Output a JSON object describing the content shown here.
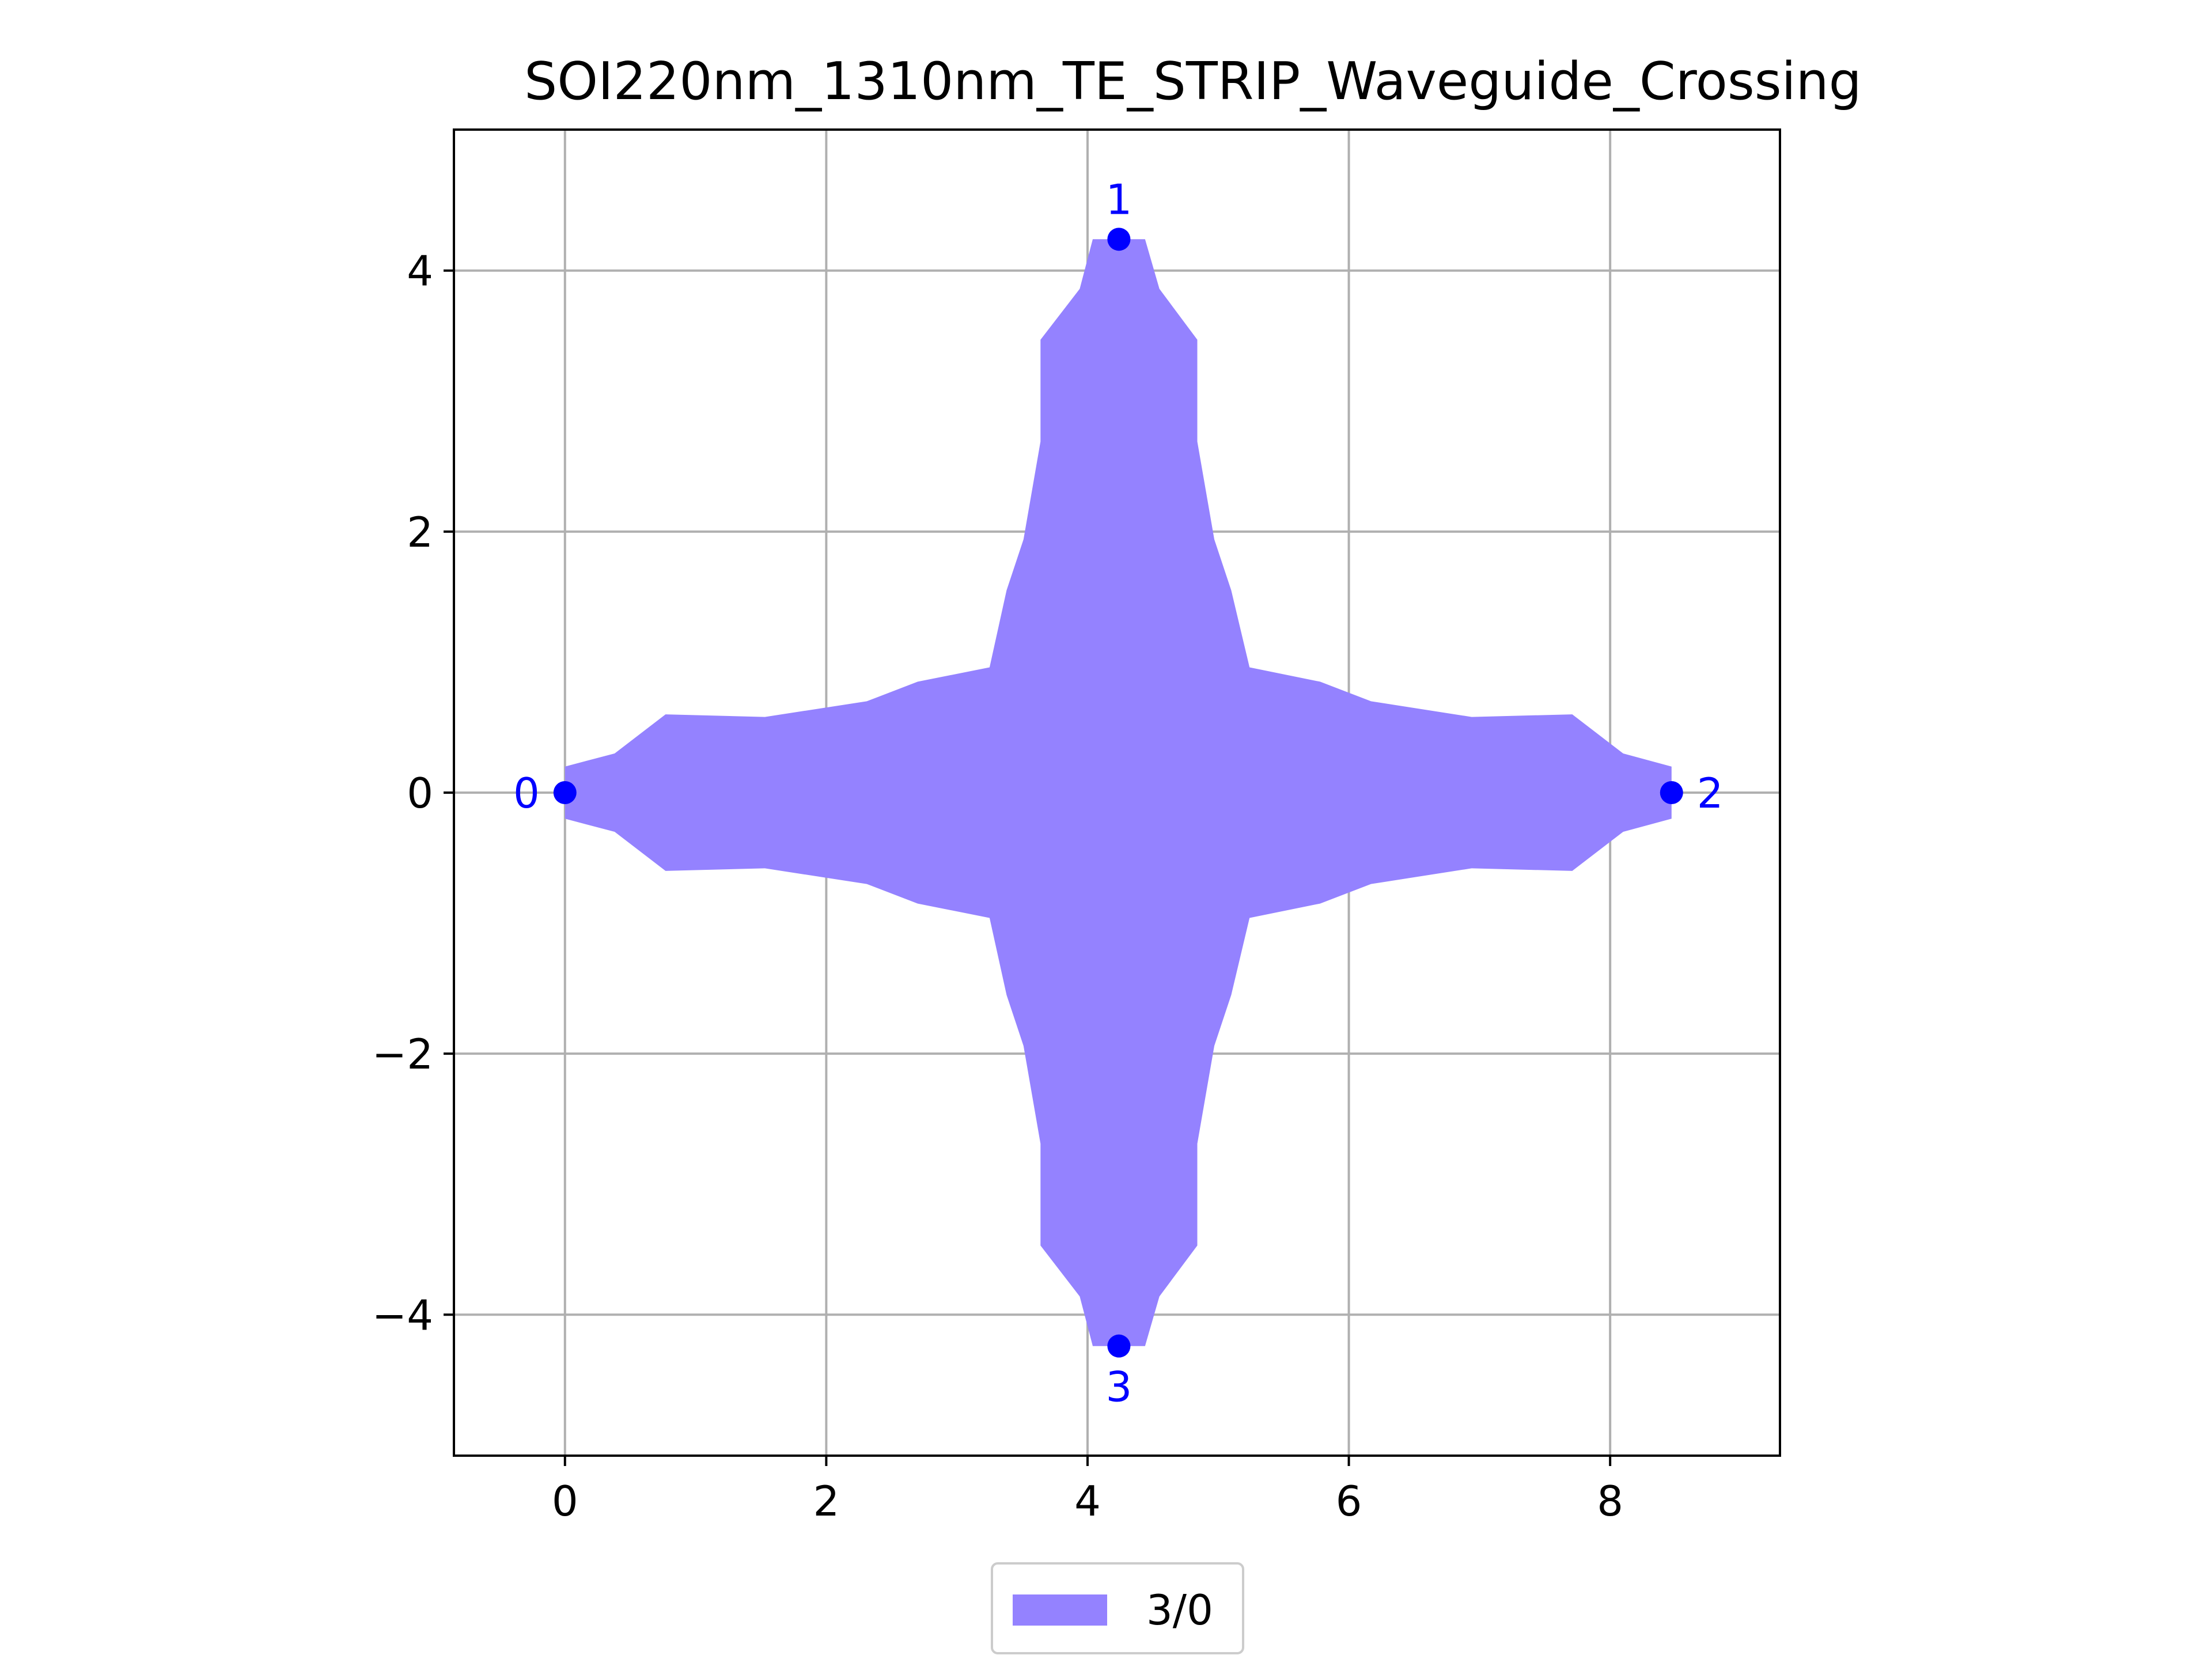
{
  "chart_data": {
    "type": "area",
    "title": "SOI220nm_1310nm_TE_STRIP_Waveguide_Crossing",
    "xlabel": "",
    "ylabel": "",
    "xlim": [
      -0.85,
      9.3
    ],
    "ylim": [
      -5.08,
      5.08
    ],
    "x_ticks": [
      0,
      2,
      4,
      6,
      8
    ],
    "y_ticks": [
      -4,
      -2,
      0,
      2,
      4
    ],
    "grid": true,
    "aspect": "equal",
    "fill_color": "#9482ff",
    "port_color": "#0000ff",
    "polygon": [
      [
        0,
        0.2
      ],
      [
        0.38,
        0.3
      ],
      [
        0.77,
        0.6
      ],
      [
        1.53,
        0.58
      ],
      [
        2.31,
        0.7
      ],
      [
        2.7,
        0.85
      ],
      [
        3.25,
        0.96
      ],
      [
        3.38,
        1.55
      ],
      [
        3.51,
        1.94
      ],
      [
        3.64,
        2.69
      ],
      [
        3.64,
        3.47
      ],
      [
        3.94,
        3.86
      ],
      [
        4.04,
        4.24
      ],
      [
        4.44,
        4.24
      ],
      [
        4.55,
        3.86
      ],
      [
        4.84,
        3.47
      ],
      [
        4.84,
        2.69
      ],
      [
        4.97,
        1.94
      ],
      [
        5.1,
        1.55
      ],
      [
        5.24,
        0.96
      ],
      [
        5.78,
        0.85
      ],
      [
        6.17,
        0.7
      ],
      [
        6.94,
        0.58
      ],
      [
        7.71,
        0.6
      ],
      [
        8.1,
        0.3
      ],
      [
        8.47,
        0.2
      ],
      [
        8.47,
        -0.2
      ],
      [
        8.1,
        -0.3
      ],
      [
        7.71,
        -0.6
      ],
      [
        6.94,
        -0.58
      ],
      [
        6.17,
        -0.7
      ],
      [
        5.78,
        -0.85
      ],
      [
        5.24,
        -0.96
      ],
      [
        5.1,
        -1.55
      ],
      [
        4.97,
        -1.94
      ],
      [
        4.84,
        -2.69
      ],
      [
        4.84,
        -3.47
      ],
      [
        4.55,
        -3.86
      ],
      [
        4.44,
        -4.24
      ],
      [
        4.04,
        -4.24
      ],
      [
        3.94,
        -3.86
      ],
      [
        3.64,
        -3.47
      ],
      [
        3.64,
        -2.69
      ],
      [
        3.51,
        -1.94
      ],
      [
        3.38,
        -1.55
      ],
      [
        3.25,
        -0.96
      ],
      [
        2.7,
        -0.85
      ],
      [
        2.31,
        -0.7
      ],
      [
        1.53,
        -0.58
      ],
      [
        0.77,
        -0.6
      ],
      [
        0.38,
        -0.3
      ],
      [
        0,
        -0.2
      ]
    ],
    "ports": [
      {
        "label": "0",
        "x": 0,
        "y": 0,
        "label_pos": "left"
      },
      {
        "label": "1",
        "x": 4.24,
        "y": 4.24,
        "label_pos": "top"
      },
      {
        "label": "2",
        "x": 8.47,
        "y": 0,
        "label_pos": "right"
      },
      {
        "label": "3",
        "x": 4.24,
        "y": -4.24,
        "label_pos": "bottom"
      }
    ],
    "legend": {
      "placement": "bottom-center",
      "entries": [
        {
          "label": "3/0",
          "color": "#9482ff"
        }
      ]
    }
  }
}
